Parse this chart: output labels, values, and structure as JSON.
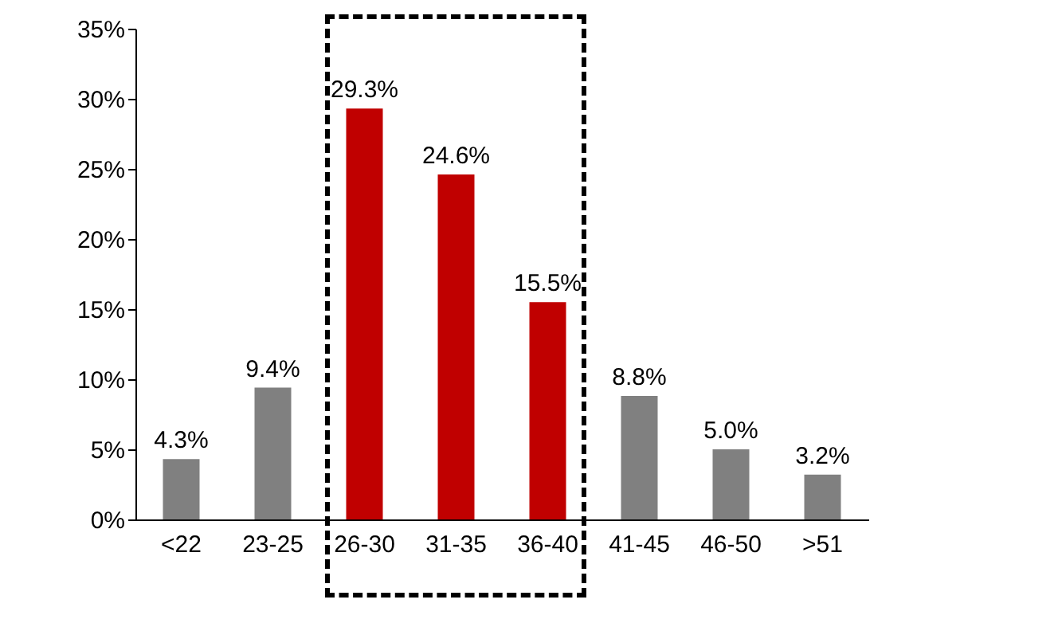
{
  "chart_data": {
    "type": "bar",
    "categories": [
      "<22",
      "23-25",
      "26-30",
      "31-35",
      "36-40",
      "41-45",
      "46-50",
      ">51"
    ],
    "values": [
      4.3,
      9.4,
      29.3,
      24.6,
      15.5,
      8.8,
      5.0,
      3.2
    ],
    "colors": [
      "#808080",
      "#808080",
      "#c00000",
      "#c00000",
      "#c00000",
      "#808080",
      "#808080",
      "#808080"
    ],
    "value_labels": [
      "4.3%",
      "9.4%",
      "29.3%",
      "24.6%",
      "15.5%",
      "8.8%",
      "5.0%",
      "3.2%"
    ],
    "ylim": [
      0,
      35
    ],
    "yticks": [
      {
        "value": 0,
        "label": "0%"
      },
      {
        "value": 5,
        "label": "5%"
      },
      {
        "value": 10,
        "label": "10%"
      },
      {
        "value": 15,
        "label": "15%"
      },
      {
        "value": 20,
        "label": "20%"
      },
      {
        "value": 25,
        "label": "25%"
      },
      {
        "value": 30,
        "label": "30%"
      },
      {
        "value": 35,
        "label": "35%"
      }
    ],
    "grid": false,
    "legend": false
  }
}
